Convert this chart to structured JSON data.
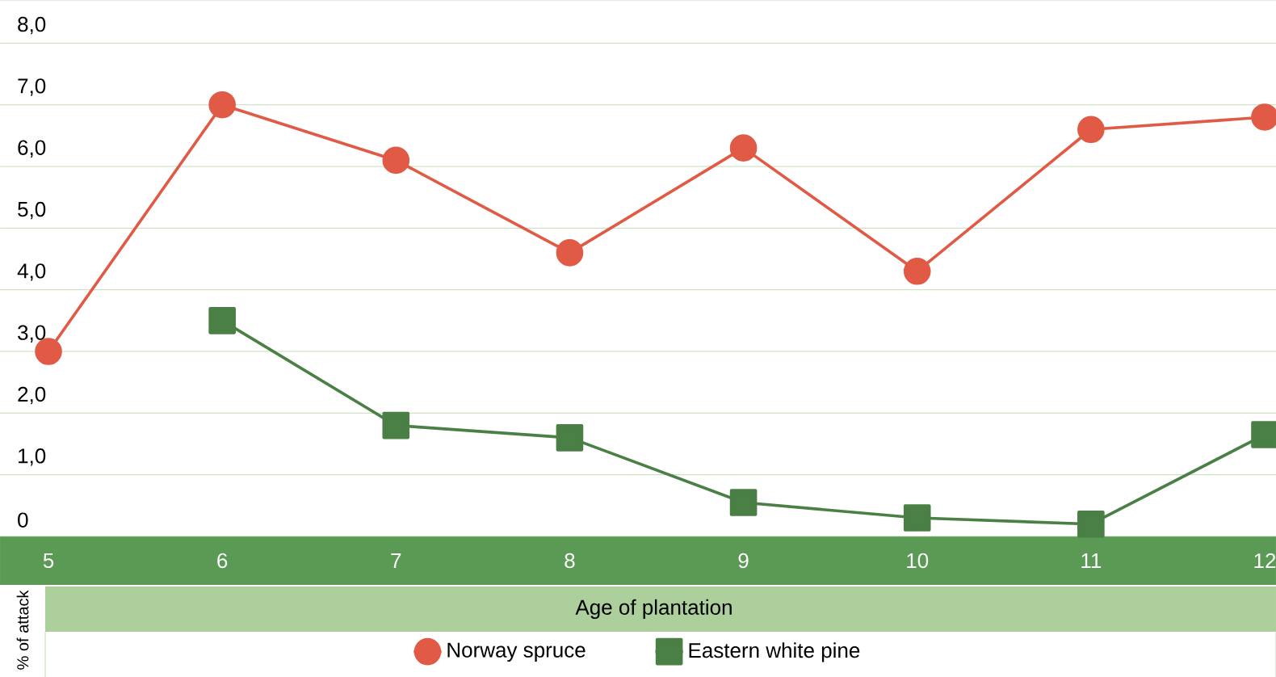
{
  "chart_data": {
    "type": "line",
    "xlabel": "Age of plantation",
    "ylabel": "% of attack",
    "categories": [
      "5",
      "6",
      "7",
      "8",
      "9",
      "10",
      "11",
      "12"
    ],
    "series": [
      {
        "name": "Norway spruce",
        "color": "#e05a45",
        "marker": "circle",
        "values": [
          3.0,
          7.0,
          6.1,
          4.6,
          6.3,
          4.3,
          6.6,
          6.8
        ]
      },
      {
        "name": "Eastern white pine",
        "color": "#4a7f45",
        "marker": "square",
        "values": [
          null,
          3.5,
          1.8,
          1.6,
          0.55,
          0.3,
          0.2,
          1.65
        ]
      }
    ],
    "ylim": [
      0,
      8.7
    ],
    "yticks": [
      0,
      {
        "value": 1,
        "label": "1,0"
      },
      {
        "value": 2,
        "label": "2,0"
      },
      {
        "value": 3,
        "label": "3,0"
      },
      {
        "value": 4,
        "label": "4,0"
      },
      {
        "value": 5,
        "label": "5,0"
      },
      {
        "value": 6,
        "label": "6,0"
      },
      {
        "value": 7,
        "label": "7,0"
      },
      {
        "value": 8,
        "label": "8,0"
      }
    ],
    "grid": "y",
    "legend": "bottom"
  }
}
